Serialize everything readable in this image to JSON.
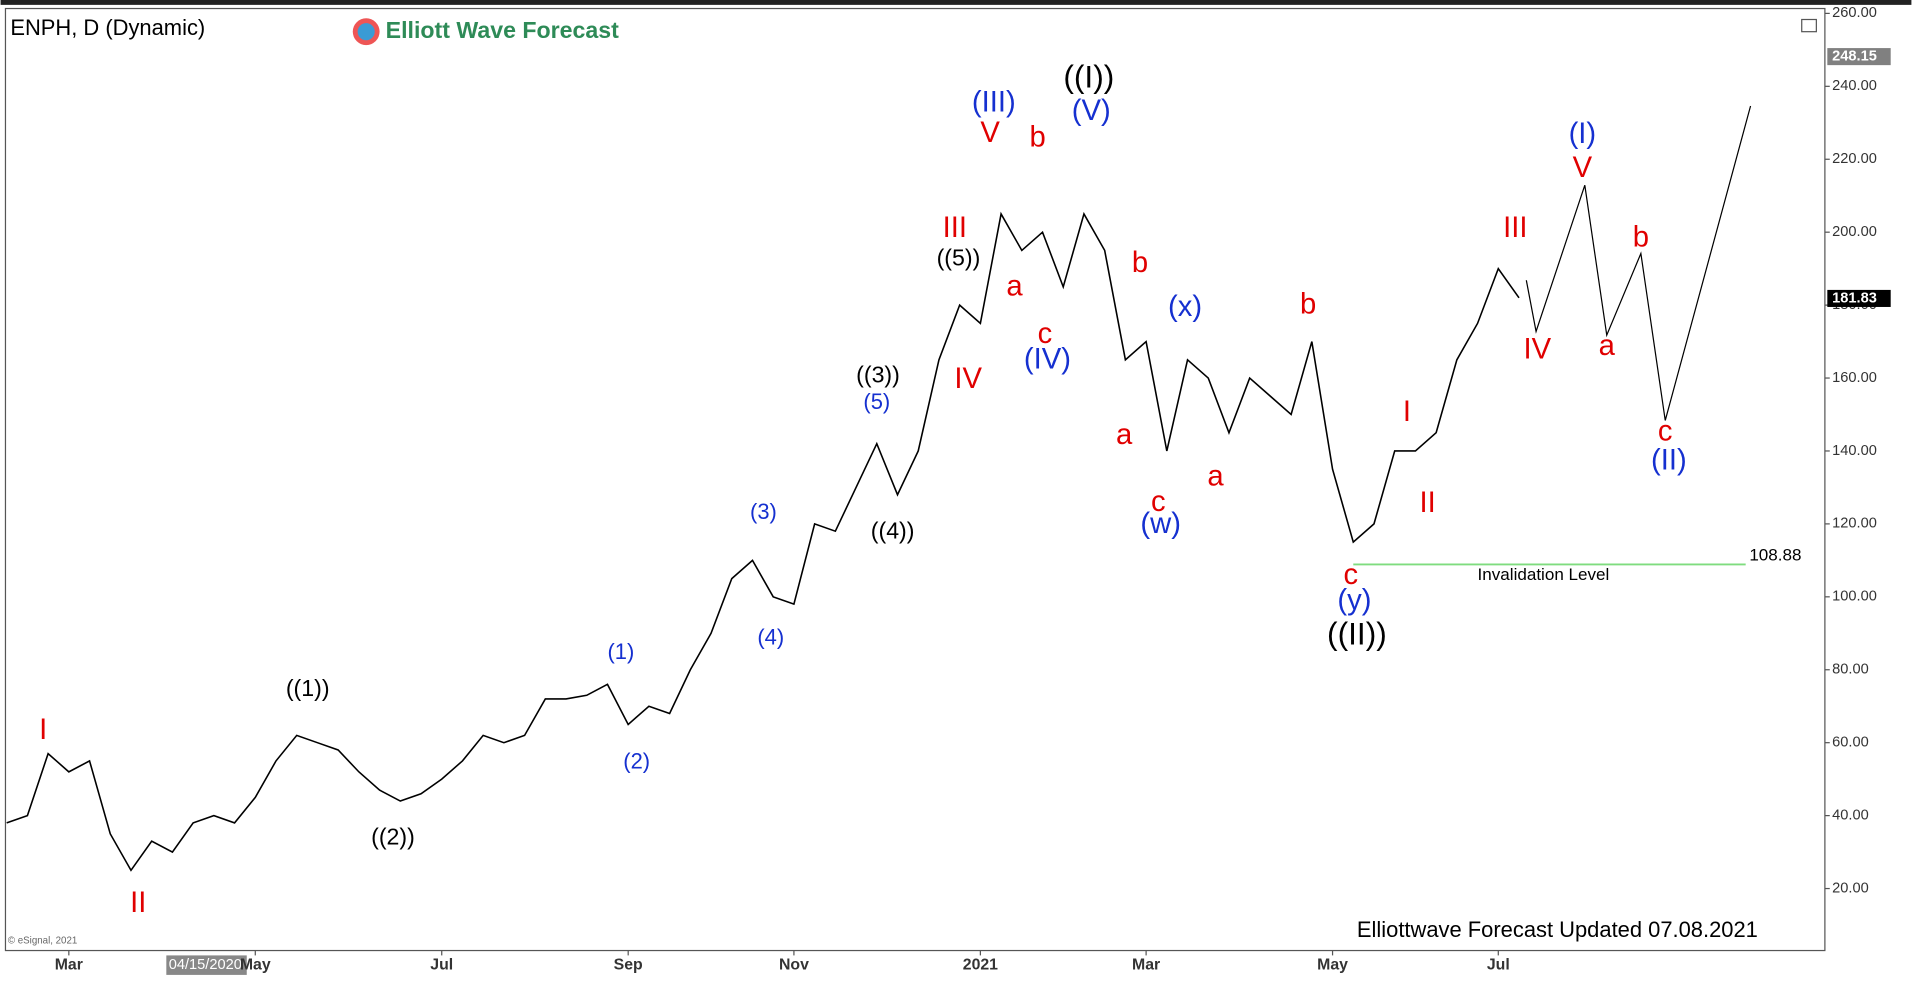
{
  "chart_data": {
    "type": "line",
    "title": "ENPH, D (Dynamic)",
    "logo": "Elliott Wave Forecast",
    "footer": "Elliottwave Forecast Updated 07.08.2021",
    "source": "© eSignal, 2021",
    "cursor_date": "04/15/2020",
    "categories": [
      null,
      null,
      null,
      "Mar",
      null,
      null,
      null,
      null,
      null,
      null,
      null,
      null,
      "May",
      null,
      null,
      null,
      null,
      null,
      null,
      null,
      null,
      "Jul",
      null,
      null,
      null,
      null,
      null,
      null,
      null,
      null,
      "Sep",
      null,
      null,
      null,
      null,
      null,
      null,
      null,
      "Nov",
      null,
      null,
      null,
      null,
      null,
      null,
      null,
      null,
      "2021",
      null,
      null,
      null,
      null,
      null,
      null,
      null,
      "Mar",
      null,
      null,
      null,
      null,
      null,
      null,
      null,
      null,
      "May",
      null,
      null,
      null,
      null,
      null,
      null,
      null,
      "Jul",
      null
    ],
    "series": [
      {
        "color": "#000000",
        "values": [
          38,
          40,
          57,
          52,
          55,
          35,
          25,
          33,
          30,
          38,
          40,
          38,
          45,
          55,
          62,
          60,
          58,
          52,
          47,
          44,
          46,
          50,
          55,
          62,
          60,
          62,
          72,
          72,
          73,
          76,
          65,
          70,
          68,
          80,
          90,
          105,
          110,
          100,
          98,
          120,
          118,
          130,
          142,
          128,
          140,
          165,
          180,
          175,
          205,
          195,
          200,
          185,
          205,
          195,
          165,
          170,
          140,
          165,
          160,
          145,
          160,
          155,
          150,
          170,
          135,
          115,
          120,
          140,
          140,
          145,
          165,
          175,
          190,
          182
        ]
      }
    ],
    "ylim": [
      3,
      261
    ],
    "yticks": [
      {
        "value": 20,
        "label": "20.00"
      },
      {
        "value": 40,
        "label": "40.00"
      },
      {
        "value": 60,
        "label": "60.00"
      },
      {
        "value": 80,
        "label": "80.00"
      },
      {
        "value": 100,
        "label": "100.00"
      },
      {
        "value": 120,
        "label": "120.00"
      },
      {
        "value": 140,
        "label": "140.00"
      },
      {
        "value": 160,
        "label": "160.00"
      },
      {
        "value": 180,
        "label": "180.00"
      },
      {
        "value": 200,
        "label": "200.00"
      },
      {
        "value": 220,
        "label": "220.00"
      },
      {
        "value": 240,
        "label": "240.00"
      },
      {
        "value": 260,
        "label": "260.00"
      }
    ],
    "price_labels": [
      {
        "value": 248.15,
        "label": "248.15",
        "color": "#808080"
      },
      {
        "value": 181.83,
        "label": "181.83",
        "color": "#000000"
      }
    ],
    "invalidation": {
      "value": 108.88,
      "label": "108.88",
      "text": "Invalidation Level",
      "color": "#7fdc7f"
    },
    "annotations": [
      {
        "text": "I",
        "color": "#e00000"
      },
      {
        "text": "II",
        "color": "#e00000"
      },
      {
        "text": "((1))",
        "color": "#000000"
      },
      {
        "text": "((2))",
        "color": "#000000"
      },
      {
        "text": "(1)",
        "color": "#1530d0"
      },
      {
        "text": "(2)",
        "color": "#1530d0"
      },
      {
        "text": "(3)",
        "color": "#1530d0"
      },
      {
        "text": "(4)",
        "color": "#1530d0"
      },
      {
        "text": "((3))",
        "color": "#000000"
      },
      {
        "text": "(5)",
        "color": "#1530d0"
      },
      {
        "text": "((4))",
        "color": "#000000"
      },
      {
        "text": "((5))",
        "color": "#000000"
      },
      {
        "text": "III",
        "color": "#e00000"
      },
      {
        "text": "IV",
        "color": "#e00000"
      },
      {
        "text": "V",
        "color": "#e00000"
      },
      {
        "text": "(III)",
        "color": "#1530d0"
      },
      {
        "text": "a",
        "color": "#e00000"
      },
      {
        "text": "b",
        "color": "#e00000"
      },
      {
        "text": "c",
        "color": "#e00000"
      },
      {
        "text": "(IV)",
        "color": "#1530d0"
      },
      {
        "text": "((I))",
        "color": "#000000"
      },
      {
        "text": "(V)",
        "color": "#1530d0"
      },
      {
        "text": "b",
        "color": "#e00000"
      },
      {
        "text": "a",
        "color": "#e00000"
      },
      {
        "text": "c",
        "color": "#e00000"
      },
      {
        "text": "(w)",
        "color": "#1530d0"
      },
      {
        "text": "(x)",
        "color": "#1530d0"
      },
      {
        "text": "a",
        "color": "#e00000"
      },
      {
        "text": "b",
        "color": "#e00000"
      },
      {
        "text": "c",
        "color": "#e00000"
      },
      {
        "text": "(y)",
        "color": "#1530d0"
      },
      {
        "text": "((II))",
        "color": "#000000"
      },
      {
        "text": "I",
        "color": "#e00000"
      },
      {
        "text": "II",
        "color": "#e00000"
      },
      {
        "text": "III",
        "color": "#e00000"
      },
      {
        "text": "IV",
        "color": "#e00000"
      },
      {
        "text": "(I)",
        "color": "#1530d0"
      },
      {
        "text": "V",
        "color": "#e00000"
      },
      {
        "text": "a",
        "color": "#e00000"
      },
      {
        "text": "b",
        "color": "#e00000"
      },
      {
        "text": "c",
        "color": "#e00000"
      },
      {
        "text": "(II)",
        "color": "#1530d0"
      }
    ]
  }
}
